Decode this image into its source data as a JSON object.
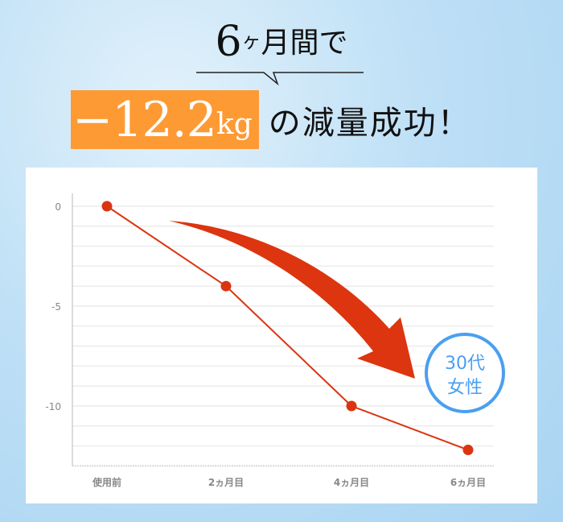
{
  "headline": {
    "number": "6",
    "small": "ヶ",
    "rest": "月間で",
    "result_value": "−12.2",
    "result_unit": "kg",
    "result_rest": "の減量成功！"
  },
  "badge": {
    "line1": "30代",
    "line2": "女性",
    "color": "#4a9ff0"
  },
  "chart_data": {
    "type": "line",
    "categories": [
      "使用前",
      "2ヵ月目",
      "4ヵ月目",
      "6ヵ月目"
    ],
    "series": [
      {
        "values": [
          0,
          -4,
          -10,
          -12.2
        ],
        "color": "#db3410"
      }
    ],
    "yticks": [
      "0",
      "-5",
      "-10"
    ],
    "ytick_values": [
      0,
      -5,
      -10
    ],
    "ylim": [
      -13,
      0
    ],
    "grid": true,
    "grid_step": 1,
    "xlabel": "",
    "ylabel": "",
    "title": ""
  }
}
